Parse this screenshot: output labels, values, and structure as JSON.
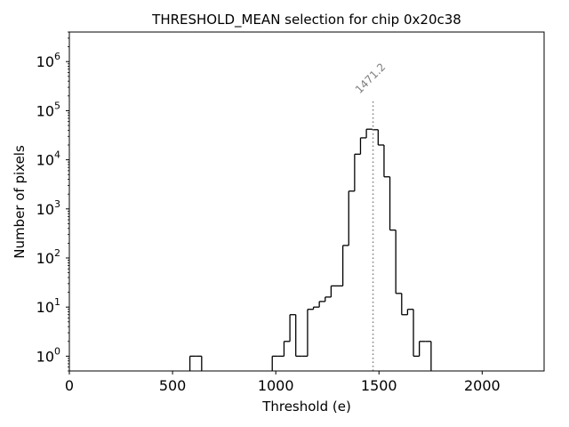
{
  "chart_data": {
    "type": "histogram",
    "title": "THRESHOLD_MEAN selection for chip 0x20c38",
    "xlabel": "Threshold (e)",
    "ylabel": "Number of pixels",
    "xlim": [
      0,
      2300
    ],
    "ylim": [
      0.5,
      4000000
    ],
    "yscale": "log",
    "grid": false,
    "x_ticks": [
      0,
      500,
      1000,
      1500,
      2000
    ],
    "x_tick_labels": [
      "0",
      "500",
      "1000",
      "1500",
      "2000"
    ],
    "y_ticks": [
      1,
      10,
      100,
      1000,
      10000,
      100000,
      1000000
    ],
    "y_tick_labels": [
      {
        "base": "10",
        "exp": "0"
      },
      {
        "base": "10",
        "exp": "1"
      },
      {
        "base": "10",
        "exp": "2"
      },
      {
        "base": "10",
        "exp": "3"
      },
      {
        "base": "10",
        "exp": "4"
      },
      {
        "base": "10",
        "exp": "5"
      },
      {
        "base": "10",
        "exp": "6"
      }
    ],
    "bin_width": 28.5,
    "bins": [
      {
        "x0": 584,
        "count": 1
      },
      {
        "x0": 612.5,
        "count": 1
      },
      {
        "x0": 983,
        "count": 1
      },
      {
        "x0": 1011.5,
        "count": 1
      },
      {
        "x0": 1040,
        "count": 2
      },
      {
        "x0": 1068.5,
        "count": 7
      },
      {
        "x0": 1097,
        "count": 1
      },
      {
        "x0": 1125.5,
        "count": 1
      },
      {
        "x0": 1154,
        "count": 9
      },
      {
        "x0": 1182.5,
        "count": 10
      },
      {
        "x0": 1211,
        "count": 13
      },
      {
        "x0": 1239.5,
        "count": 16
      },
      {
        "x0": 1268,
        "count": 27
      },
      {
        "x0": 1296.5,
        "count": 27
      },
      {
        "x0": 1325,
        "count": 180
      },
      {
        "x0": 1353.5,
        "count": 2300
      },
      {
        "x0": 1382,
        "count": 13000
      },
      {
        "x0": 1410.5,
        "count": 28000
      },
      {
        "x0": 1439,
        "count": 42000
      },
      {
        "x0": 1467.5,
        "count": 41000
      },
      {
        "x0": 1496,
        "count": 20000
      },
      {
        "x0": 1524.5,
        "count": 4500
      },
      {
        "x0": 1553,
        "count": 370
      },
      {
        "x0": 1581.5,
        "count": 19
      },
      {
        "x0": 1610,
        "count": 7
      },
      {
        "x0": 1638.5,
        "count": 9
      },
      {
        "x0": 1667,
        "count": 1
      },
      {
        "x0": 1695.5,
        "count": 2
      },
      {
        "x0": 1724,
        "count": 2
      }
    ],
    "marker": {
      "x": 1471.2,
      "label": "1471.2",
      "y_top": 170000,
      "color": "#808080",
      "style": "dotted"
    },
    "line_color": "#000000"
  }
}
